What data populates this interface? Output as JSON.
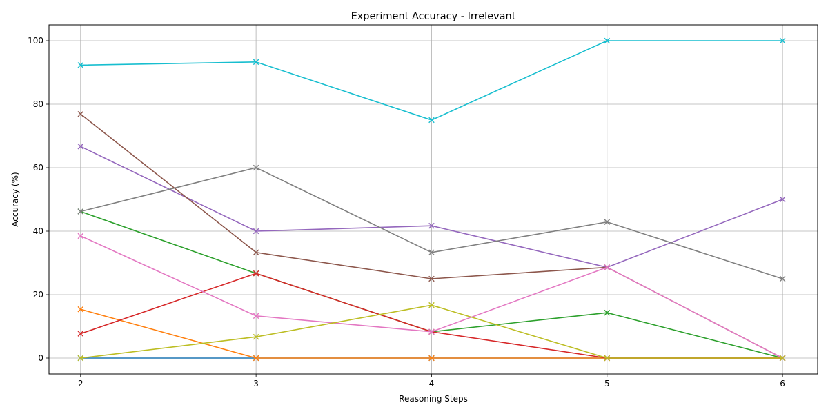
{
  "chart_data": {
    "type": "line",
    "title": "Experiment Accuracy - Irrelevant",
    "xlabel": "Reasoning Steps",
    "ylabel": "Accuracy (%)",
    "x": [
      2,
      3,
      4,
      5,
      6
    ],
    "xlim": [
      1.82,
      6.2
    ],
    "ylim": [
      -5,
      105
    ],
    "xticks": [
      2,
      3,
      4,
      5,
      6
    ],
    "yticks": [
      0,
      20,
      40,
      60,
      80,
      100
    ],
    "grid": true,
    "marker": "x",
    "series": [
      {
        "color": "#1f77b4",
        "values": [
          0,
          0,
          0,
          0,
          0
        ]
      },
      {
        "color": "#ff7f0e",
        "values": [
          15.4,
          0,
          0,
          0,
          0
        ]
      },
      {
        "color": "#2ca02c",
        "values": [
          46.2,
          26.7,
          8.3,
          14.3,
          0
        ]
      },
      {
        "color": "#d62728",
        "values": [
          7.7,
          26.7,
          8.3,
          0,
          0
        ]
      },
      {
        "color": "#9467bd",
        "values": [
          66.7,
          40.0,
          41.7,
          28.6,
          50.0
        ]
      },
      {
        "color": "#8c564b",
        "values": [
          76.9,
          33.3,
          25.0,
          28.6,
          0
        ]
      },
      {
        "color": "#e377c2",
        "values": [
          38.5,
          13.3,
          8.3,
          28.6,
          0
        ]
      },
      {
        "color": "#7f7f7f",
        "values": [
          46.2,
          60.0,
          33.3,
          42.9,
          25.0
        ]
      },
      {
        "color": "#bcbd22",
        "values": [
          0,
          6.7,
          16.7,
          0,
          0
        ]
      },
      {
        "color": "#17becf",
        "values": [
          92.3,
          93.3,
          75.0,
          100,
          100
        ]
      }
    ]
  }
}
